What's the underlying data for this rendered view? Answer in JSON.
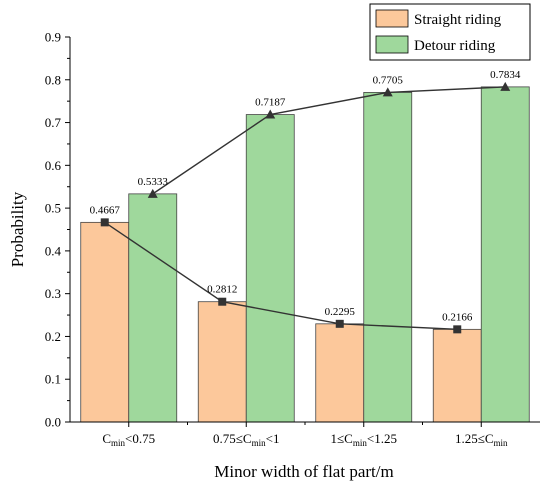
{
  "chart_data": {
    "type": "bar",
    "xlabel": "Minor width of flat part/m",
    "ylabel": "Probability",
    "ylim": [
      0,
      0.9
    ],
    "yticks": [
      "0.0",
      "0.1",
      "0.2",
      "0.3",
      "0.4",
      "0.5",
      "0.6",
      "0.7",
      "0.8",
      "0.9"
    ],
    "categories": [
      {
        "pre": "C",
        "sub": "min",
        "post": "<0.75"
      },
      {
        "pre": "0.75≤C",
        "sub": "min",
        "post": "<1"
      },
      {
        "pre": "1≤C",
        "sub": "min",
        "post": "<1.25"
      },
      {
        "pre": "1.25≤C",
        "sub": "min",
        "post": ""
      }
    ],
    "series": [
      {
        "name": "Straight riding",
        "values": [
          0.4667,
          0.2812,
          0.2295,
          0.2166
        ],
        "labels": [
          "0.4667",
          "0.2812",
          "0.2295",
          "0.2166"
        ],
        "color": "#fcc89b",
        "marker": "square"
      },
      {
        "name": "Detour riding",
        "values": [
          0.5333,
          0.7187,
          0.7705,
          0.7834
        ],
        "labels": [
          "0.5333",
          "0.7187",
          "0.7705",
          "0.7834"
        ],
        "color": "#9fd89c",
        "marker": "triangle"
      }
    ],
    "legend_position": "top-right",
    "grid": false,
    "line_color": "#333333"
  }
}
